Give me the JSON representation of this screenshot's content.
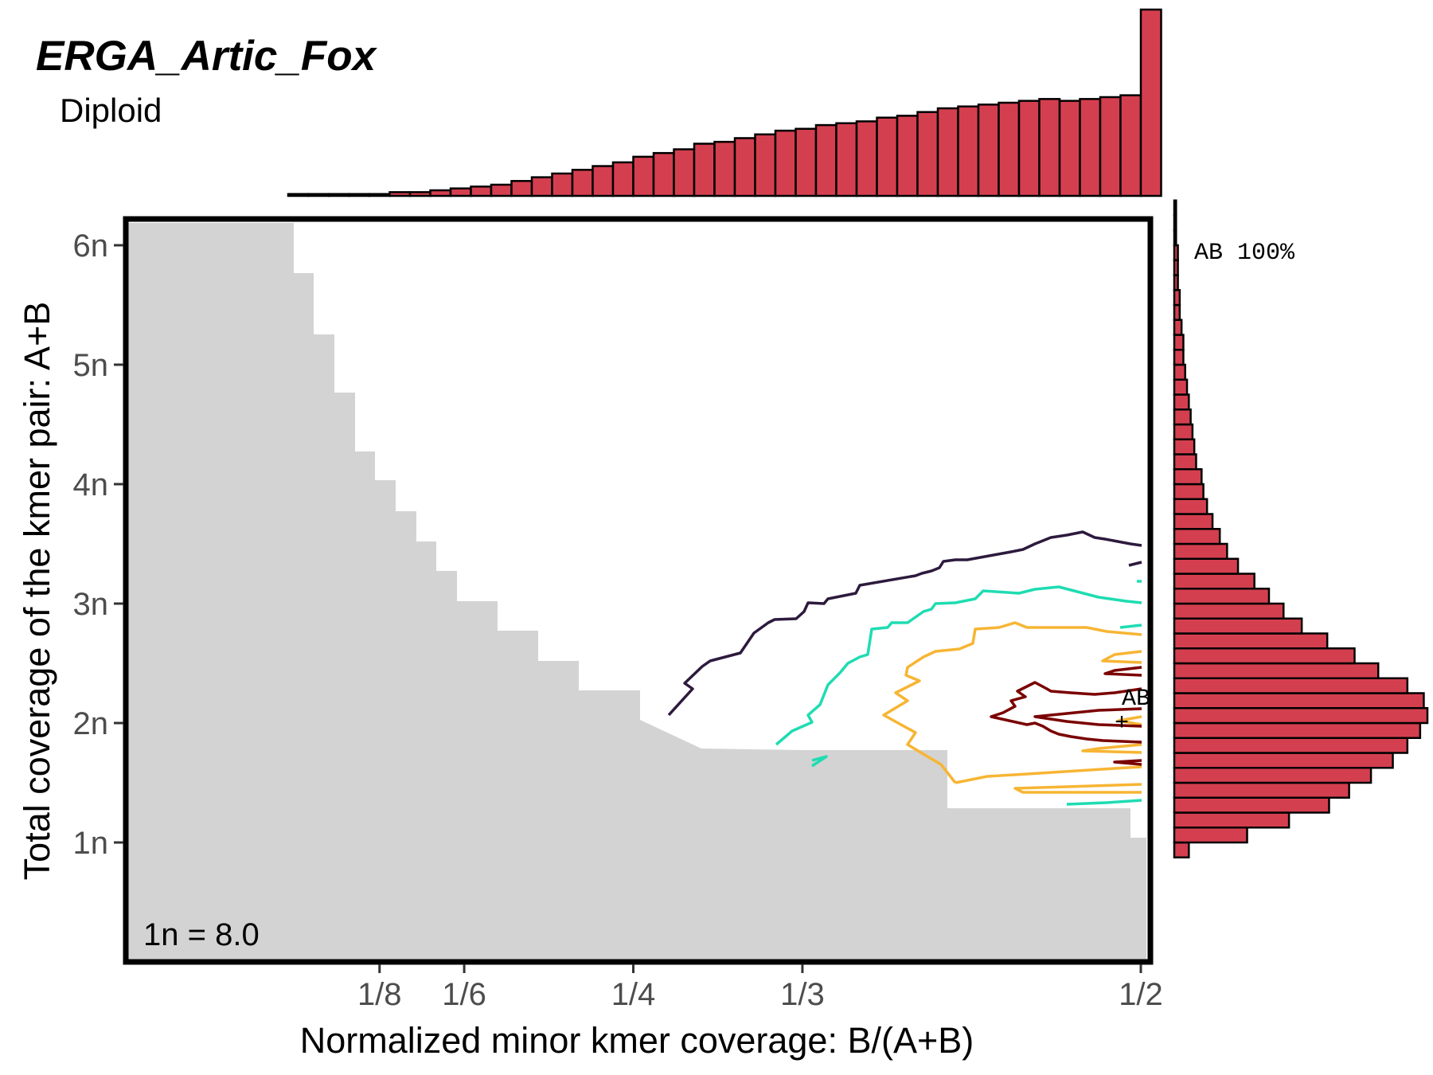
{
  "chart_data": {
    "type": "heatmap",
    "title": "ERGA_Artic_Fox",
    "subtitle": "Diploid",
    "xlabel": "Normalized minor kmer coverage: B/(A+B)",
    "ylabel": "Total coverage of the kmer pair: A+B",
    "x_ticks": [
      {
        "value": 0.125,
        "label": "1/8"
      },
      {
        "value": 0.1667,
        "label": "1/6"
      },
      {
        "value": 0.25,
        "label": "1/4"
      },
      {
        "value": 0.3333,
        "label": "1/3"
      },
      {
        "value": 0.5,
        "label": "1/2"
      }
    ],
    "y_ticks": [
      {
        "value": 8,
        "label": "1n"
      },
      {
        "value": 16,
        "label": "2n"
      },
      {
        "value": 24,
        "label": "3n"
      },
      {
        "value": 32,
        "label": "4n"
      },
      {
        "value": 40,
        "label": "5n"
      },
      {
        "value": 48,
        "label": "6n"
      }
    ],
    "xlim": [
      0.0,
      0.5
    ],
    "ylim": [
      0,
      48
    ],
    "coverage_annotation": "1n = 8.0",
    "peak_label": "AB",
    "peak_marker": "+",
    "peak_position": {
      "x": 0.497,
      "y": 15.9
    },
    "smudge_legend": "AB 100%",
    "colors": {
      "bars": "#d43f4f",
      "bar_outline": "#000000",
      "grey_region": "#d3d3d3",
      "contour_level_1": "#2d1a3d",
      "contour_level_2": "#1fdcb2",
      "contour_level_3": "#f7b534",
      "contour_level_4": "#7a0000"
    },
    "top_histogram": {
      "bin_width": 0.01,
      "x_start": 0.08,
      "values": [
        1,
        1,
        1,
        1,
        1,
        2,
        2,
        3,
        4,
        5,
        6,
        8,
        10,
        12,
        14,
        16,
        18,
        21,
        23,
        25,
        28,
        29,
        31,
        33,
        35,
        36,
        38,
        39,
        40,
        42,
        43,
        45,
        47,
        48,
        49,
        50,
        51,
        52,
        51,
        52,
        53,
        54,
        100
      ]
    },
    "right_histogram": {
      "bin_width": 1,
      "y_start": 7,
      "values": [
        8,
        40,
        63,
        85,
        96,
        108,
        120,
        128,
        135,
        139,
        137,
        128,
        112,
        99,
        84,
        70,
        60,
        52,
        44,
        35,
        29,
        25,
        21,
        18,
        16,
        15,
        12,
        11,
        10,
        9,
        8,
        7,
        6,
        5,
        5,
        4,
        3,
        3,
        2,
        2,
        2,
        1,
        1,
        1
      ]
    }
  }
}
